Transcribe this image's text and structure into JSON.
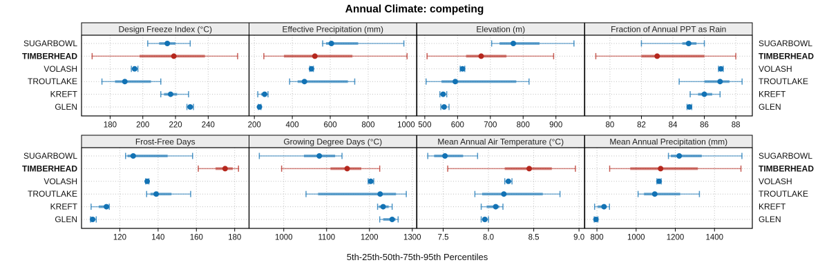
{
  "title": "Annual Climate: competing",
  "axis_title": "5th-25th-50th-75th-95th Percentiles",
  "colors": {
    "series": "#1272b4",
    "highlight": "#b5271d",
    "strip_bg": "#ececec",
    "grid": "#bdbdbd",
    "border": "#000000",
    "text": "#111111"
  },
  "chart_data": {
    "type": "trellis-dotplot-percentiles",
    "percentiles": [
      "5th",
      "25th",
      "50th",
      "75th",
      "95th"
    ],
    "legend_position": "none",
    "grid": "dotted",
    "sites": [
      {
        "name": "SUGARBOWL",
        "highlight": false
      },
      {
        "name": "TIMBERHEAD",
        "highlight": true
      },
      {
        "name": "VOLASH",
        "highlight": false
      },
      {
        "name": "TROUTLAKE",
        "highlight": false
      },
      {
        "name": "KREFT",
        "highlight": false
      },
      {
        "name": "GLEN",
        "highlight": false
      }
    ],
    "panels": [
      {
        "title": "Design Freeze Index (°C)",
        "row": 0,
        "col": 0,
        "xlim": [
          162.5,
          265
        ],
        "ticks": [
          180,
          200,
          220,
          240
        ],
        "tick_labels": [
          "180",
          "200",
          "220",
          "240"
        ],
        "values": {
          "SUGARBOWL": [
            203,
            210,
            215,
            220,
            229
          ],
          "TIMBERHEAD": [
            169,
            198,
            219,
            238,
            258
          ],
          "VOLASH": [
            193,
            194,
            195,
            196,
            197
          ],
          "TROUTLAKE": [
            175,
            183,
            189,
            205,
            211
          ],
          "KREFT": [
            211,
            213,
            217,
            221,
            228
          ],
          "GLEN": [
            227,
            228,
            229,
            230,
            231
          ]
        }
      },
      {
        "title": "Effective Precipitation (mm)",
        "row": 0,
        "col": 1,
        "xlim": [
          172,
          1055
        ],
        "ticks": [
          200,
          400,
          600,
          800,
          1000
        ],
        "tick_labels": [
          "200",
          "400",
          "600",
          "800",
          "1000"
        ],
        "values": {
          "SUGARBOWL": [
            560,
            578,
            606,
            747,
            988
          ],
          "TIMBERHEAD": [
            250,
            356,
            519,
            717,
            1005
          ],
          "VOLASH": [
            492,
            497,
            501,
            505,
            511
          ],
          "TROUTLAKE": [
            386,
            428,
            464,
            693,
            729
          ],
          "KREFT": [
            218,
            236,
            254,
            266,
            272
          ],
          "GLEN": [
            221,
            225,
            227,
            230,
            235
          ]
        }
      },
      {
        "title": "Elevation (m)",
        "row": 0,
        "col": 2,
        "xlim": [
          476,
          987
        ],
        "ticks": [
          500,
          600,
          700,
          800,
          900
        ],
        "tick_labels": [
          "500",
          "600",
          "700",
          "800",
          "900"
        ],
        "values": {
          "SUGARBOWL": [
            704,
            728,
            770,
            850,
            955
          ],
          "TIMBERHEAD": [
            507,
            626,
            672,
            749,
            893
          ],
          "VOLASH": [
            608,
            612,
            615,
            618,
            622
          ],
          "TROUTLAKE": [
            504,
            551,
            593,
            779,
            818
          ],
          "KREFT": [
            546,
            551,
            556,
            561,
            567
          ],
          "GLEN": [
            549,
            554,
            559,
            564,
            574
          ]
        }
      },
      {
        "title": "Fraction of Annual PPT as Rain",
        "row": 0,
        "col": 3,
        "xlim": [
          78.4,
          89.05
        ],
        "ticks": [
          80,
          82,
          84,
          86,
          88
        ],
        "tick_labels": [
          "80",
          "82",
          "84",
          "86",
          "88"
        ],
        "values": {
          "SUGARBOWL": [
            82.0,
            84.6,
            85.0,
            85.5,
            86.0
          ],
          "TIMBERHEAD": [
            79.1,
            82.0,
            83.0,
            86.0,
            88.0
          ],
          "VOLASH": [
            86.9,
            87.0,
            87.05,
            87.1,
            87.2
          ],
          "TROUTLAKE": [
            84.4,
            86.0,
            87.0,
            87.6,
            88.4
          ],
          "KREFT": [
            85.1,
            85.6,
            86.0,
            86.5,
            87.0
          ],
          "GLEN": [
            84.9,
            85.0,
            85.05,
            85.1,
            85.2
          ]
        }
      },
      {
        "title": "Frost-Free Days",
        "row": 1,
        "col": 0,
        "xlim": [
          100,
          187.5
        ],
        "ticks": [
          120,
          140,
          160,
          180
        ],
        "tick_labels": [
          "120",
          "140",
          "160",
          "180"
        ],
        "values": {
          "SUGARBOWL": [
            123,
            124,
            127,
            145,
            158
          ],
          "TIMBERHEAD": [
            161,
            170,
            175,
            179,
            182
          ],
          "VOLASH": [
            133.5,
            134,
            134.3,
            134.7,
            135.2
          ],
          "TROUTLAKE": [
            134,
            136,
            139,
            147,
            157
          ],
          "KREFT": [
            105,
            109,
            113,
            114,
            114.5
          ],
          "GLEN": [
            104.7,
            105.2,
            105.8,
            106.5,
            107.7
          ]
        }
      },
      {
        "title": "Growing Degree Days (°C)",
        "row": 1,
        "col": 1,
        "xlim": [
          919,
          1310
        ],
        "ticks": [
          1000,
          1100,
          1200,
          1300
        ],
        "tick_labels": [
          "1000",
          "1100",
          "1200",
          "1300"
        ],
        "values": {
          "SUGARBOWL": [
            943,
            1047,
            1083,
            1120,
            1136
          ],
          "TIMBERHEAD": [
            995,
            1109,
            1148,
            1181,
            1224
          ],
          "VOLASH": [
            1197,
            1200,
            1203,
            1206,
            1210
          ],
          "TROUTLAKE": [
            1052,
            1080,
            1225,
            1262,
            1286
          ],
          "KREFT": [
            1219,
            1222,
            1232,
            1245,
            1253
          ],
          "GLEN": [
            1224,
            1232,
            1253,
            1261,
            1267
          ]
        }
      },
      {
        "title": "Mean Annual Air Temperature (°C)",
        "row": 1,
        "col": 2,
        "xlim": [
          7.21,
          9.06
        ],
        "ticks": [
          7.5,
          8.0,
          8.5,
          9.0
        ],
        "tick_labels": [
          "7.5",
          "8.0",
          "8.5",
          "9.0"
        ],
        "values": {
          "SUGARBOWL": [
            7.33,
            7.4,
            7.52,
            7.72,
            7.88
          ],
          "TIMBERHEAD": [
            7.55,
            8.18,
            8.45,
            8.7,
            8.96
          ],
          "VOLASH": [
            8.18,
            8.2,
            8.22,
            8.24,
            8.26
          ],
          "TROUTLAKE": [
            7.85,
            7.93,
            8.17,
            8.6,
            8.79
          ],
          "KREFT": [
            7.92,
            7.98,
            8.08,
            8.12,
            8.16
          ],
          "GLEN": [
            7.92,
            7.94,
            7.96,
            7.98,
            8.0
          ]
        }
      },
      {
        "title": "Mean Annual Precipitation (mm)",
        "row": 1,
        "col": 3,
        "xlim": [
          738,
          1593
        ],
        "ticks": [
          800,
          1000,
          1200,
          1400
        ],
        "tick_labels": [
          "800",
          "1000",
          "1200",
          "1400"
        ],
        "values": {
          "SUGARBOWL": [
            1165,
            1177,
            1220,
            1335,
            1540
          ],
          "TIMBERHEAD": [
            865,
            970,
            1125,
            1315,
            1535
          ],
          "VOLASH": [
            1106,
            1112,
            1117,
            1122,
            1128
          ],
          "TROUTLAKE": [
            1010,
            1040,
            1095,
            1225,
            1323
          ],
          "KREFT": [
            788,
            804,
            836,
            850,
            864
          ],
          "GLEN": [
            786,
            791,
            795,
            799,
            805
          ]
        }
      }
    ]
  }
}
